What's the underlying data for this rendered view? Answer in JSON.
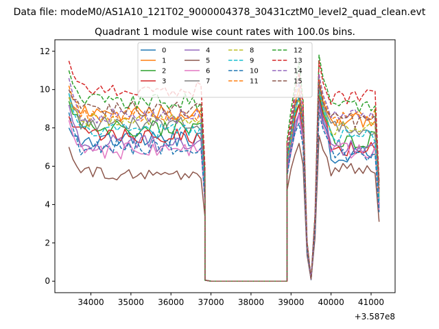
{
  "chart_data": {
    "type": "line",
    "suptitle": "Data file: modeM0/AS1A10_121T02_9000004378_30431cztM0_level2_quad_clean.evt",
    "title": "Quadrant 1 module wise count rates with 100.0s bins.",
    "xlabel": "",
    "ylabel": "",
    "x_offset_label": "+3.587e8",
    "xlim": [
      33100,
      41600
    ],
    "ylim": [
      -0.6,
      12.6
    ],
    "xticks": [
      34000,
      35000,
      36000,
      37000,
      38000,
      39000,
      40000,
      41000
    ],
    "xtick_labels": [
      "34000",
      "35000",
      "36000",
      "37000",
      "38000",
      "39000",
      "40000",
      "41000"
    ],
    "yticks": [
      0,
      2,
      4,
      6,
      8,
      10,
      12
    ],
    "ytick_labels": [
      "0",
      "2",
      "4",
      "6",
      "8",
      "10",
      "12"
    ],
    "legend_position": "upper-center",
    "legend_columns": 4,
    "seg1": {
      "x_start": 33450,
      "x_step": 100,
      "count": 35
    },
    "gap": {
      "x": [
        36850,
        37000,
        37500,
        38000,
        38500,
        38900
      ],
      "values": [
        0.05,
        0.0,
        0.0,
        0.0,
        0.0,
        0.0
      ]
    },
    "seg2": {
      "x": [
        38900,
        39000,
        39100,
        39200,
        39300,
        39400,
        39500,
        39600,
        39700,
        39800
      ]
    },
    "seg3": {
      "x_start": 39900,
      "x_step": 100,
      "count": 14
    },
    "series": [
      {
        "name": "0",
        "color": "#1f77b4",
        "dash": "solid",
        "base1": 7.4,
        "start": 8.0,
        "amp": 0.45,
        "peak2": 9.2,
        "base3": 6.6,
        "end": 3.8
      },
      {
        "name": "1",
        "color": "#ff7f0e",
        "dash": "solid",
        "base1": 8.8,
        "start": 9.6,
        "amp": 0.4,
        "peak2": 10.4,
        "base3": 8.4,
        "end": 4.6
      },
      {
        "name": "2",
        "color": "#2ca02c",
        "dash": "solid",
        "base1": 8.0,
        "start": 9.4,
        "amp": 0.45,
        "peak2": 9.8,
        "base3": 7.4,
        "end": 4.2
      },
      {
        "name": "3",
        "color": "#d62728",
        "dash": "solid",
        "base1": 7.6,
        "start": 8.6,
        "amp": 0.45,
        "peak2": 9.6,
        "base3": 7.0,
        "end": 4.0
      },
      {
        "name": "4",
        "color": "#9467bd",
        "dash": "solid",
        "base1": 7.2,
        "start": 9.2,
        "amp": 0.45,
        "peak2": 9.4,
        "base3": 7.0,
        "end": 3.9
      },
      {
        "name": "5",
        "color": "#8c564b",
        "dash": "solid",
        "base1": 5.6,
        "start": 7.0,
        "amp": 0.35,
        "peak2": 7.6,
        "base3": 5.8,
        "end": 3.1
      },
      {
        "name": "6",
        "color": "#e377c2",
        "dash": "solid",
        "base1": 6.8,
        "start": 8.4,
        "amp": 0.45,
        "peak2": 9.0,
        "base3": 6.8,
        "end": 3.7
      },
      {
        "name": "7",
        "color": "#7f7f7f",
        "dash": "solid",
        "base1": 8.2,
        "start": 9.8,
        "amp": 0.4,
        "peak2": 10.2,
        "base3": 8.0,
        "end": 4.4
      },
      {
        "name": "8",
        "color": "#bcbd22",
        "dash": "dashed",
        "base1": 8.4,
        "start": 9.6,
        "amp": 0.4,
        "peak2": 10.0,
        "base3": 8.0,
        "end": 4.4
      },
      {
        "name": "9",
        "color": "#17becf",
        "dash": "dashed",
        "base1": 7.8,
        "start": 9.8,
        "amp": 0.4,
        "peak2": 10.0,
        "base3": 7.6,
        "end": 4.2
      },
      {
        "name": "10",
        "color": "#1f77b4",
        "dash": "dashed",
        "base1": 7.0,
        "start": 8.8,
        "amp": 0.45,
        "peak2": 8.8,
        "base3": 6.6,
        "end": 3.6
      },
      {
        "name": "11",
        "color": "#ff7f0e",
        "dash": "dashed",
        "base1": 8.7,
        "start": 10.2,
        "amp": 0.4,
        "peak2": 10.6,
        "base3": 8.6,
        "end": 4.7
      },
      {
        "name": "12",
        "color": "#2ca02c",
        "dash": "dashed",
        "base1": 9.4,
        "start": 11.0,
        "amp": 0.4,
        "peak2": 11.8,
        "base3": 9.2,
        "end": 5.0
      },
      {
        "name": "13",
        "color": "#d62728",
        "dash": "dashed",
        "base1": 10.0,
        "start": 11.5,
        "amp": 0.4,
        "peak2": 11.5,
        "base3": 9.6,
        "end": 5.2
      },
      {
        "name": "14",
        "color": "#9467bd",
        "dash": "dashed",
        "base1": 8.6,
        "start": 10.6,
        "amp": 0.4,
        "peak2": 10.8,
        "base3": 8.6,
        "end": 4.6
      },
      {
        "name": "15",
        "color": "#8c564b",
        "dash": "dashed",
        "base1": 9.0,
        "start": 10.0,
        "amp": 0.4,
        "peak2": 10.4,
        "base3": 8.4,
        "end": 4.8
      }
    ]
  }
}
